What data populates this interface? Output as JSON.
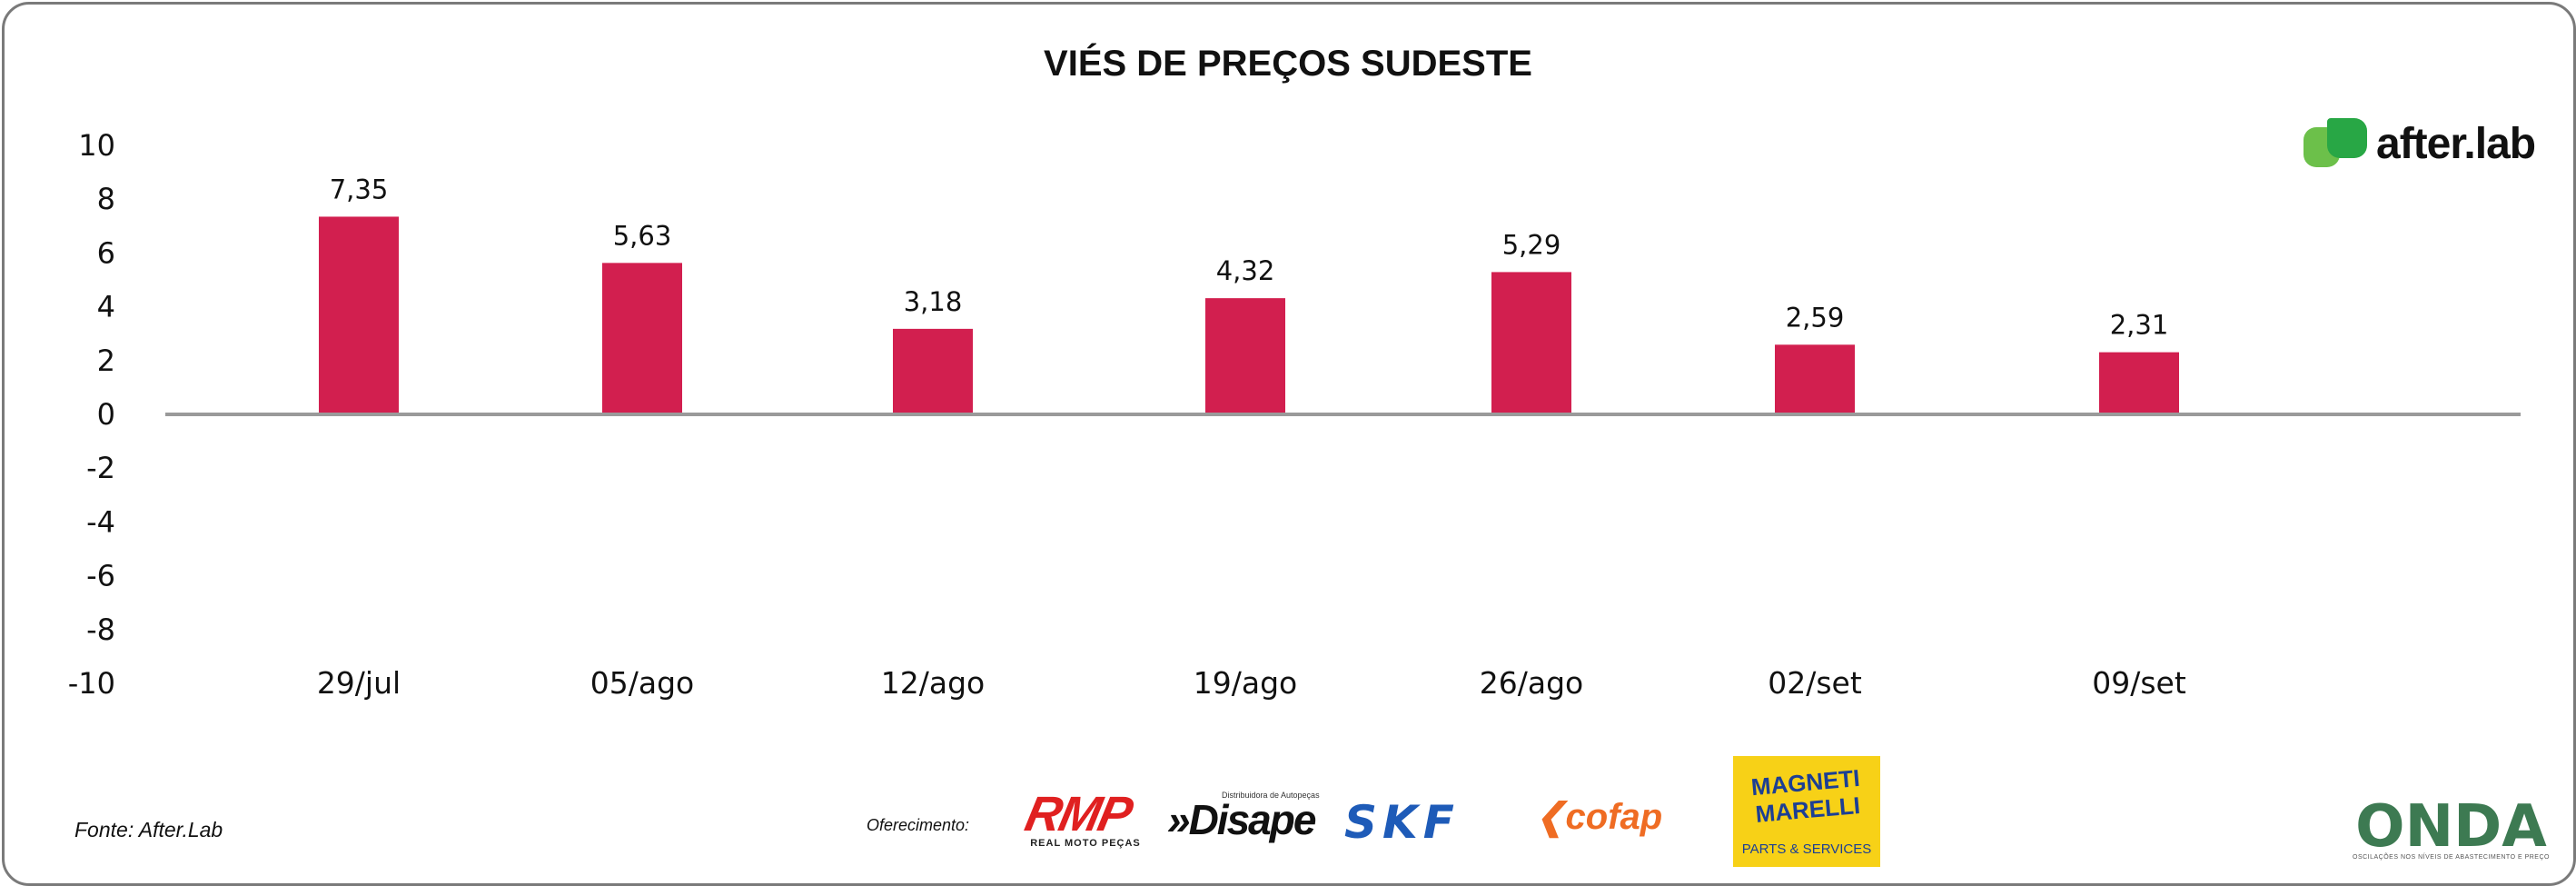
{
  "chart_data": {
    "type": "bar",
    "title": "VIÉS DE PREÇOS SUDESTE",
    "categories": [
      "29/jul",
      "05/ago",
      "12/ago",
      "19/ago",
      "26/ago",
      "02/set",
      "09/set"
    ],
    "values": [
      7.35,
      5.63,
      3.18,
      4.32,
      5.29,
      2.59,
      2.31
    ],
    "data_labels": [
      "7,35",
      "5,63",
      "3,18",
      "4,32",
      "5,29",
      "2,59",
      "2,31"
    ],
    "ylim": [
      -10,
      10
    ],
    "yticks": [
      "10",
      "8",
      "6",
      "4",
      "2",
      "0",
      "-2",
      "-4",
      "-6",
      "-8",
      "-10"
    ],
    "ytick_values": [
      10,
      8,
      6,
      4,
      2,
      0,
      -2,
      -4,
      -6,
      -8,
      -10
    ],
    "xlabel": "",
    "ylabel": "",
    "grid": false,
    "legend": "none",
    "bar_color": "#d21f4f",
    "axis_color": "#9a9a9a"
  },
  "footer": {
    "source": "Fonte: After.Lab",
    "sponsor_label": "Oferecimento:"
  },
  "logos": {
    "afterlab": "after.lab",
    "rmp": "RMP",
    "rmp_sub": "REAL MOTO PEÇAS",
    "disape_tagline": "Distribuidora de Autopeças",
    "disape": "»Disape",
    "skf": "SKF",
    "cofap": "cofap",
    "magneti_line1": "MAGNETI",
    "magneti_line2": "MARELLI",
    "magneti_sub": "PARTS & SERVICES",
    "onda": "ONDA",
    "onda_sub": "OSCILAÇÕES NOS NÍVEIS DE ABASTECIMENTO E PREÇO"
  },
  "colors": {
    "frame": "#7a7a7a",
    "afterlab_green": "#6cc04a",
    "magneti_bg": "#f7d117"
  }
}
